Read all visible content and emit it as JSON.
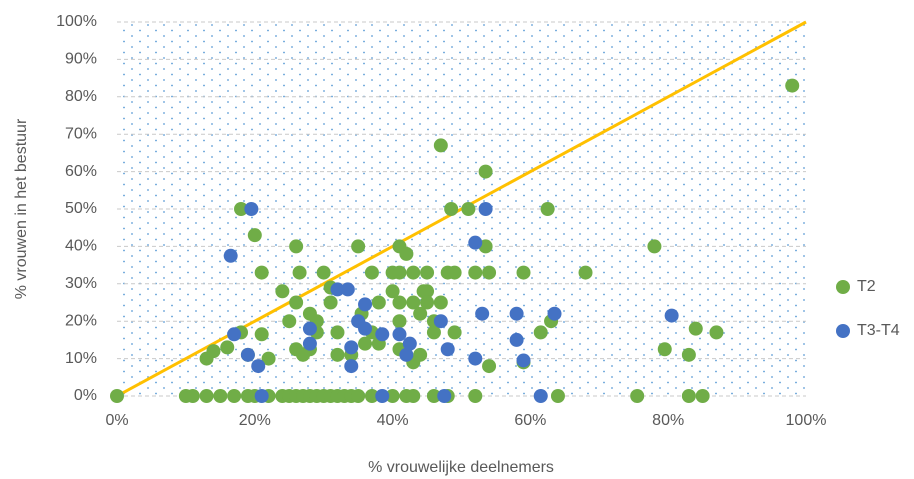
{
  "chart_data": {
    "type": "scatter",
    "xlabel": "% vrouwelijke deelnemers",
    "ylabel": "% vrouwen in het bestuur",
    "xlim": [
      0,
      100
    ],
    "ylim": [
      0,
      100
    ],
    "xticks": [
      {
        "value": 0,
        "label": "0%"
      },
      {
        "value": 20,
        "label": "20%"
      },
      {
        "value": 40,
        "label": "40%"
      },
      {
        "value": 60,
        "label": "60%"
      },
      {
        "value": 80,
        "label": "80%"
      },
      {
        "value": 100,
        "label": "100%"
      }
    ],
    "yticks": [
      {
        "value": 0,
        "label": "0%"
      },
      {
        "value": 10,
        "label": "10%"
      },
      {
        "value": 20,
        "label": "20%"
      },
      {
        "value": 30,
        "label": "30%"
      },
      {
        "value": 40,
        "label": "40%"
      },
      {
        "value": 50,
        "label": "50%"
      },
      {
        "value": 60,
        "label": "60%"
      },
      {
        "value": 70,
        "label": "70%"
      },
      {
        "value": 80,
        "label": "80%"
      },
      {
        "value": 90,
        "label": "90%"
      },
      {
        "value": 100,
        "label": "100%"
      }
    ],
    "grid": true,
    "legend": "right",
    "reference_line": {
      "x": [
        0,
        100
      ],
      "values": [
        0,
        100
      ],
      "color": "#ffc000"
    },
    "series": [
      {
        "name": "T2",
        "color": "#70ad47",
        "x": [
          0,
          98,
          47,
          53.5,
          18,
          48.5,
          51,
          62.5,
          20,
          26,
          35,
          41,
          53.5,
          78,
          21,
          26.5,
          30,
          37,
          40,
          41,
          43,
          45,
          48,
          49,
          52,
          54,
          59,
          68,
          42,
          24,
          31,
          40,
          45,
          44.5,
          26,
          31,
          38,
          41,
          43,
          45,
          47,
          28,
          35.5,
          44,
          25,
          29,
          41,
          46,
          63,
          13,
          14,
          16,
          18,
          21,
          29,
          32,
          37,
          46,
          49,
          61.5,
          84,
          87,
          19,
          26,
          28,
          36,
          38,
          41,
          44,
          79.5,
          83,
          22,
          27,
          32,
          34,
          43,
          54,
          59,
          10,
          11,
          13,
          15,
          17,
          19,
          20,
          22,
          24,
          25,
          26,
          27,
          28,
          29,
          30,
          31,
          32,
          33,
          34,
          35,
          37,
          40,
          42,
          43,
          46,
          48,
          52,
          64,
          75.5,
          83,
          85
        ],
        "values": [
          0,
          83,
          67,
          60,
          50,
          50,
          50,
          50,
          43,
          40,
          40,
          40,
          40,
          40,
          33,
          33,
          33,
          33,
          33,
          33,
          33,
          33,
          33,
          33,
          33,
          33,
          33,
          33,
          38,
          28,
          29,
          28,
          28,
          28,
          25,
          25,
          25,
          25,
          25,
          25,
          25,
          22,
          22,
          22,
          20,
          20,
          20,
          20,
          20,
          10,
          12,
          13,
          17,
          16.5,
          17,
          17,
          17,
          17,
          17,
          17,
          18,
          17,
          11,
          12.5,
          12.5,
          14,
          14,
          12.5,
          11,
          12.5,
          11,
          10,
          11,
          11,
          11,
          9,
          8,
          9,
          0,
          0,
          0,
          0,
          0,
          0,
          0,
          0,
          0,
          0,
          0,
          0,
          0,
          0,
          0,
          0,
          0,
          0,
          0,
          0,
          0,
          0,
          0,
          0,
          0,
          0,
          0,
          0,
          0,
          0,
          0
        ]
      },
      {
        "name": "T3-T4",
        "color": "#4472c4",
        "x": [
          16.5,
          19.5,
          53.5,
          52,
          17,
          19,
          20.5,
          21,
          28,
          28,
          32,
          33.5,
          34,
          34,
          35,
          36,
          36,
          38.5,
          38.5,
          41,
          42,
          42.5,
          47,
          48,
          47.5,
          52,
          53,
          58,
          58,
          59,
          61.5,
          63.5,
          80.5
        ],
        "values": [
          37.5,
          50,
          50,
          41,
          16.5,
          11,
          8,
          0,
          18,
          14,
          28.5,
          28.5,
          13,
          8,
          20,
          24.5,
          18,
          16.5,
          0,
          16.5,
          11,
          14,
          20,
          12.5,
          0,
          10,
          22,
          22,
          15,
          9.5,
          0,
          22,
          21.5
        ]
      }
    ]
  }
}
